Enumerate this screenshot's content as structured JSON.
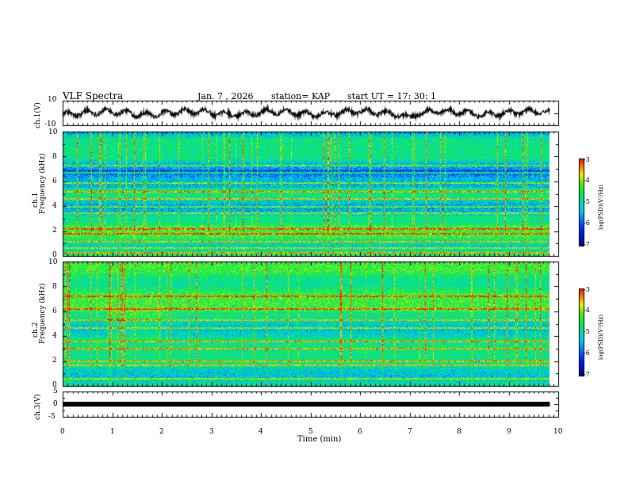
{
  "header": {
    "title": "VLF Spectra",
    "date": "Jan. 7 , 2026",
    "station": "station= KAP",
    "start": "start  UT  =   17: 30: 1"
  },
  "chart_data": {
    "type": "heatmap",
    "x_axis": {
      "label": "Time  (min)",
      "range": [
        0,
        10
      ],
      "ticks": [
        "0",
        "1",
        "2",
        "3",
        "4",
        "5",
        "6",
        "7",
        "8",
        "9",
        "10"
      ],
      "data_end": 9.83
    },
    "panels": [
      {
        "id": "ch1-waveform",
        "type": "line",
        "ylabel": "ch.1(V)",
        "ylim": [
          -10,
          10
        ],
        "yticks": [
          "10",
          "-10"
        ],
        "description_values": {
          "amplitude_typical": 4
        }
      },
      {
        "id": "ch1-spectrogram",
        "type": "heatmap",
        "ylabel_line1": "ch.1",
        "ylabel_line2": "Frequency  (kHz)",
        "ylim": [
          0,
          10
        ],
        "yticks": [
          "0",
          "2",
          "4",
          "6",
          "8",
          "10"
        ],
        "colorbar": {
          "range": [
            -7,
            -3
          ],
          "ticks": [
            "-3",
            "-4",
            "-5",
            "-6",
            "-7"
          ],
          "label": "log(PSD)(V²/Hz)"
        },
        "bright_lines_khz": [
          0.3,
          0.7,
          1.2,
          1.8,
          2.2,
          3.5,
          4.0,
          4.6,
          5.2,
          5.9,
          6.7,
          7.3
        ]
      },
      {
        "id": "ch2-spectrogram",
        "type": "heatmap",
        "ylabel_line1": "ch.2",
        "ylabel_line2": "Frequency  (kHz)",
        "ylim": [
          0,
          10
        ],
        "yticks": [
          "0",
          "2",
          "4",
          "6",
          "8",
          "10"
        ],
        "colorbar": {
          "range": [
            -7,
            -3
          ],
          "ticks": [
            "-3",
            "-4",
            "-5",
            "-6",
            "-7"
          ],
          "label": "log(PSD)(V²/Hz)"
        },
        "bright_lines_khz": [
          0.6,
          1.7,
          2.0,
          3.0,
          3.6,
          4.7,
          5.3,
          6.2,
          7.2
        ]
      },
      {
        "id": "ch3-waveform",
        "type": "line",
        "ylabel": "ch.3(V)",
        "ylim": [
          -5,
          5
        ],
        "yticks": [
          "5",
          "0",
          "-5"
        ],
        "constant_value": 0
      }
    ]
  }
}
